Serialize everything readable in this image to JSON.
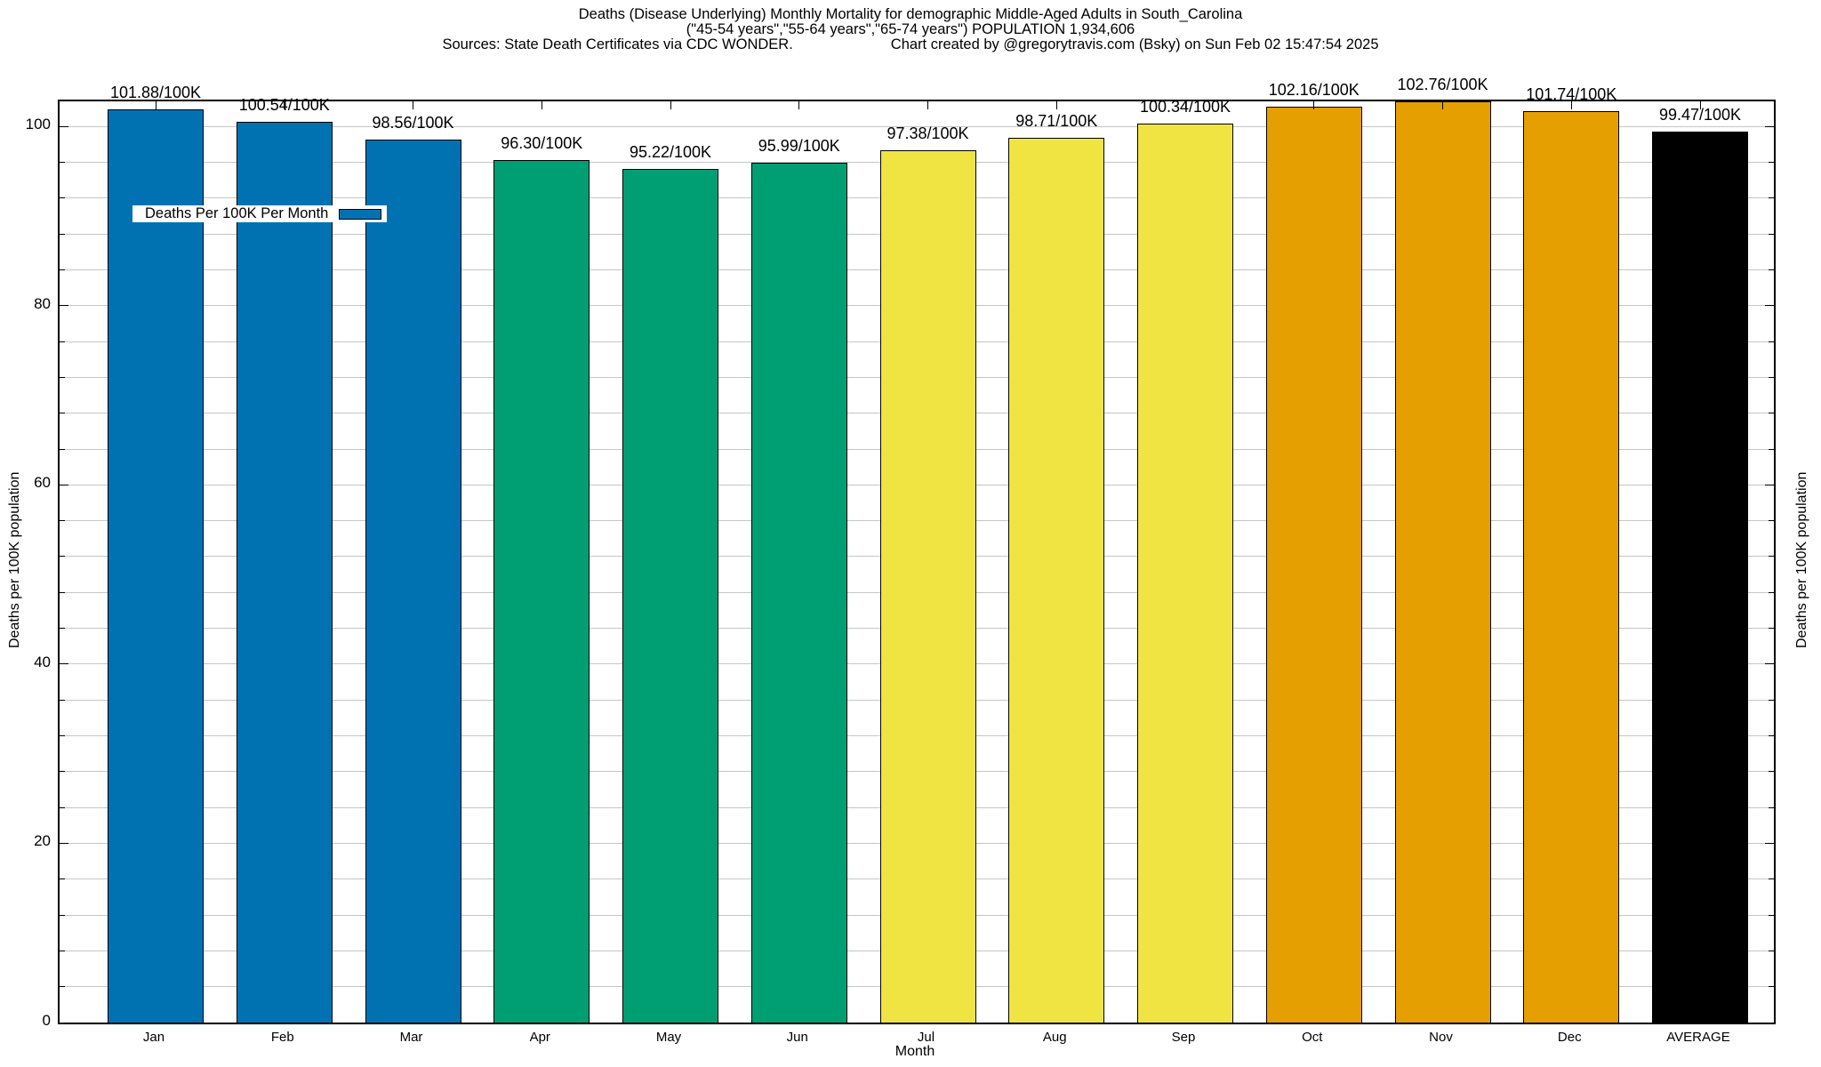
{
  "title": {
    "line1": "Deaths (Disease Underlying) Monthly Mortality for demographic Middle-Aged Adults in South_Carolina",
    "line2": "(\"45-54 years\",\"55-64 years\",\"65-74 years\") POPULATION 1,934,606",
    "sources": "Sources: State Death Certificates via CDC WONDER.",
    "credit": "Chart created by @gregorytravis.com (Bsky) on Sun Feb 02 15:47:54 2025"
  },
  "legend": {
    "label": "Deaths Per 100K Per Month",
    "swatch_color": "#0072B2"
  },
  "axes": {
    "xlabel": "Month",
    "ylabel_left": "Deaths per 100K population",
    "ylabel_right": "Deaths per 100K population"
  },
  "palette": {
    "q1_blue": "#0072B2",
    "q2_green": "#009E73",
    "q3_yellow": "#F0E442",
    "q4_orange": "#E69F00",
    "average_black": "#000000",
    "gridline_gray": "#c6c6c6"
  },
  "chart_data": {
    "type": "bar",
    "title": "Deaths (Disease Underlying) Monthly Mortality for demographic Middle-Aged Adults in South_Carolina (\"45-54 years\",\"55-64 years\",\"65-74 years\") POPULATION 1,934,606",
    "categories": [
      "Jan",
      "Feb",
      "Mar",
      "Apr",
      "May",
      "Jun",
      "Jul",
      "Aug",
      "Sep",
      "Oct",
      "Nov",
      "Dec",
      "AVERAGE"
    ],
    "values": [
      101.88,
      100.54,
      98.56,
      96.3,
      95.22,
      95.99,
      97.38,
      98.71,
      100.34,
      102.16,
      102.76,
      101.74,
      99.47
    ],
    "bar_labels": [
      "101.88/100K",
      "100.54/100K",
      "98.56/100K",
      "96.30/100K",
      "95.22/100K",
      "95.99/100K",
      "97.38/100K",
      "98.71/100K",
      "100.34/100K",
      "102.16/100K",
      "102.76/100K",
      "101.74/100K",
      "99.47/100K"
    ],
    "bar_colors": [
      "#0072B2",
      "#0072B2",
      "#0072B2",
      "#009E73",
      "#009E73",
      "#009E73",
      "#F0E442",
      "#F0E442",
      "#F0E442",
      "#E69F00",
      "#E69F00",
      "#E69F00",
      "#000000"
    ],
    "xlabel": "Month",
    "ylabel": "Deaths per 100K population",
    "ylim": [
      0,
      102.8
    ],
    "yticks": [
      0,
      20,
      40,
      60,
      80,
      100
    ],
    "minor_grid_step": 4,
    "grid": true,
    "legend_entries": [
      "Deaths Per 100K Per Month"
    ],
    "legend_position": "top-left"
  }
}
